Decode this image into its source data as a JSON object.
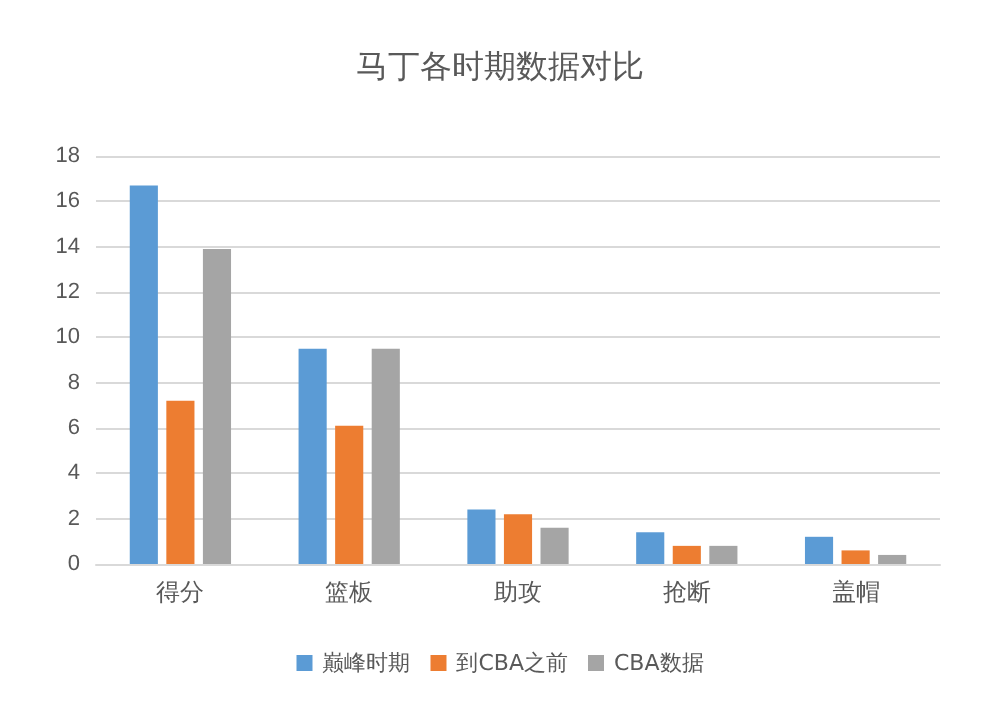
{
  "chart_data": {
    "type": "bar",
    "title": "马丁各时期数据对比",
    "categories": [
      "得分",
      "篮板",
      "助攻",
      "抢断",
      "盖帽"
    ],
    "series": [
      {
        "name": "巅峰时期",
        "color": "#5b9bd5",
        "values": [
          16.7,
          9.5,
          2.4,
          1.4,
          1.2
        ]
      },
      {
        "name": "到CBA之前",
        "color": "#ed7d31",
        "values": [
          7.2,
          6.1,
          2.2,
          0.8,
          0.6
        ]
      },
      {
        "name": "CBA数据",
        "color": "#a5a5a5",
        "values": [
          13.9,
          9.5,
          1.6,
          0.8,
          0.4
        ]
      }
    ],
    "ylim": [
      0,
      18
    ],
    "yticks": [
      0,
      2,
      4,
      6,
      8,
      10,
      12,
      14,
      16,
      18
    ],
    "grid": "y",
    "legend": "bottom"
  }
}
